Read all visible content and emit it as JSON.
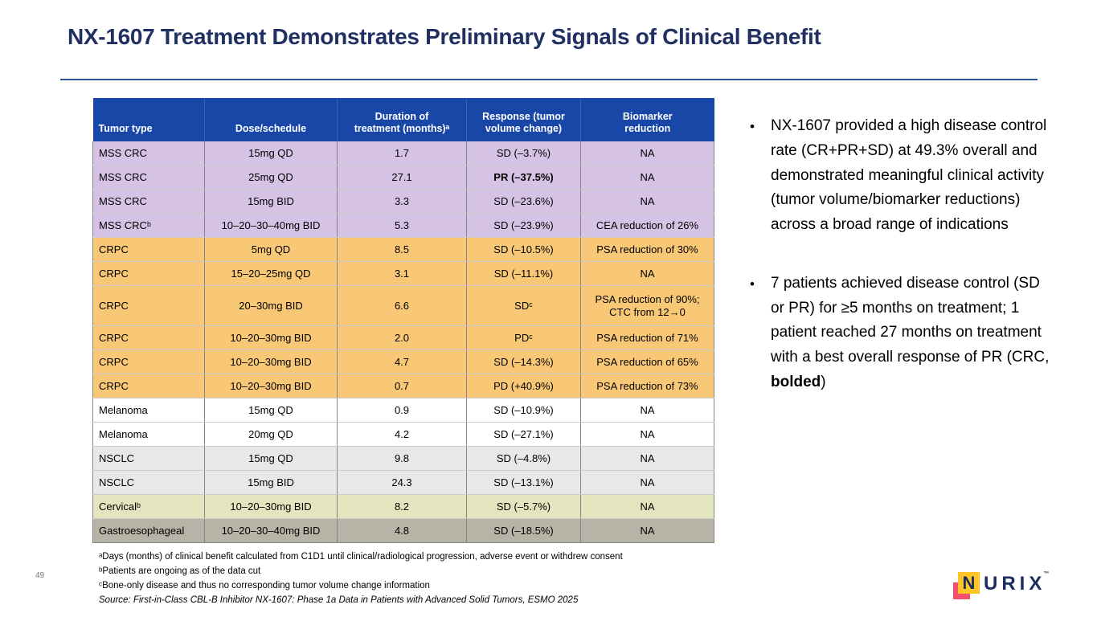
{
  "slide": {
    "title": "NX-1607 Treatment Demonstrates Preliminary Signals of Clinical Benefit",
    "page_number": "49"
  },
  "colors": {
    "title_navy": "#1F3061",
    "rule_blue": "#2E5597",
    "header_bg": "#1847A8",
    "group_mss": "#D6C2E4",
    "group_crpc": "#F9C877",
    "group_melanoma": "#FFFFFF",
    "group_nsclc": "#E9E8E7",
    "group_cervical": "#E2E5BE",
    "group_gastro": "#B7B3A6",
    "logo_yellow": "#FFC425",
    "logo_pink": "#F4506E",
    "logo_navy": "#1B2D5E"
  },
  "table": {
    "headers": [
      "Tumor type",
      "Dose/schedule",
      "Duration of\ntreatment (months)ᵃ",
      "Response (tumor\nvolume change)",
      "Biomarker\nreduction"
    ],
    "rows": [
      {
        "tumor": "MSS CRC",
        "dose": "15mg QD",
        "duration": "1.7",
        "response": "SD (–3.7%)",
        "biomarker": "NA",
        "group": "mss"
      },
      {
        "tumor": "MSS CRC",
        "dose": "25mg QD",
        "duration": "27.1",
        "response": "PR (–37.5%)",
        "biomarker": "NA",
        "group": "mss",
        "response_bold": true
      },
      {
        "tumor": "MSS CRC",
        "dose": "15mg BID",
        "duration": "3.3",
        "response": "SD (–23.6%)",
        "biomarker": "NA",
        "group": "mss"
      },
      {
        "tumor": "MSS CRCᵇ",
        "dose": "10–20–30–40mg BID",
        "duration": "5.3",
        "response": "SD (–23.9%)",
        "biomarker": "CEA reduction of 26%",
        "group": "mss"
      },
      {
        "tumor": "CRPC",
        "dose": "5mg QD",
        "duration": "8.5",
        "response": "SD (–10.5%)",
        "biomarker": "PSA reduction of 30%",
        "group": "crpc"
      },
      {
        "tumor": "CRPC",
        "dose": "15–20–25mg QD",
        "duration": "3.1",
        "response": "SD (–11.1%)",
        "biomarker": "NA",
        "group": "crpc"
      },
      {
        "tumor": "CRPC",
        "dose": "20–30mg BID",
        "duration": "6.6",
        "response": "SDᶜ",
        "biomarker": "PSA reduction of 90%;\nCTC from 12→0",
        "group": "crpc",
        "tall": true
      },
      {
        "tumor": "CRPC",
        "dose": "10–20–30mg BID",
        "duration": "2.0",
        "response": "PDᶜ",
        "biomarker": "PSA reduction of 71%",
        "group": "crpc"
      },
      {
        "tumor": "CRPC",
        "dose": "10–20–30mg BID",
        "duration": "4.7",
        "response": "SD (–14.3%)",
        "biomarker": "PSA reduction of 65%",
        "group": "crpc"
      },
      {
        "tumor": "CRPC",
        "dose": "10–20–30mg BID",
        "duration": "0.7",
        "response": "PD (+40.9%)",
        "biomarker": "PSA reduction of 73%",
        "group": "crpc"
      },
      {
        "tumor": "Melanoma",
        "dose": "15mg QD",
        "duration": "0.9",
        "response": "SD (–10.9%)",
        "biomarker": "NA",
        "group": "melanoma"
      },
      {
        "tumor": "Melanoma",
        "dose": "20mg QD",
        "duration": "4.2",
        "response": "SD (–27.1%)",
        "biomarker": "NA",
        "group": "melanoma"
      },
      {
        "tumor": "NSCLC",
        "dose": "15mg QD",
        "duration": "9.8",
        "response": "SD (–4.8%)",
        "biomarker": "NA",
        "group": "nsclc"
      },
      {
        "tumor": "NSCLC",
        "dose": "15mg BID",
        "duration": "24.3",
        "response": "SD (–13.1%)",
        "biomarker": "NA",
        "group": "nsclc"
      },
      {
        "tumor": "Cervicalᵇ",
        "dose": "10–20–30mg BID",
        "duration": "8.2",
        "response": "SD (–5.7%)",
        "biomarker": "NA",
        "group": "cervical"
      },
      {
        "tumor": "Gastroesophageal",
        "dose": "10–20–30–40mg BID",
        "duration": "4.8",
        "response": "SD (–18.5%)",
        "biomarker": "NA",
        "group": "gastro"
      }
    ]
  },
  "bullets": {
    "first": "NX-1607 provided a high disease control rate (CR+PR+SD) at 49.3% overall and demonstrated meaningful clinical activity (tumor volume/biomarker reductions) across a broad range of indications",
    "second_before": "7 patients achieved disease control (SD or PR) for ≥5 months on treatment; 1 patient reached 27 months on treatment with a best overall response of PR (CRC, ",
    "second_bold": "bolded",
    "second_after": ")",
    "marker": "•"
  },
  "footnotes": {
    "a": "ᵃDays (months) of clinical benefit calculated from C1D1 until clinical/radiological progression, adverse event or withdrew consent",
    "b": "ᵇPatients are ongoing as of the data cut",
    "c": "ᶜBone-only disease and thus no corresponding tumor volume change information",
    "source": "Source: First-in-Class CBL-B Inhibitor NX-1607: Phase 1a Data in Patients with Advanced Solid Tumors, ESMO 2025"
  },
  "logo": {
    "n": "N",
    "rest": "URIX",
    "tm": "™"
  }
}
